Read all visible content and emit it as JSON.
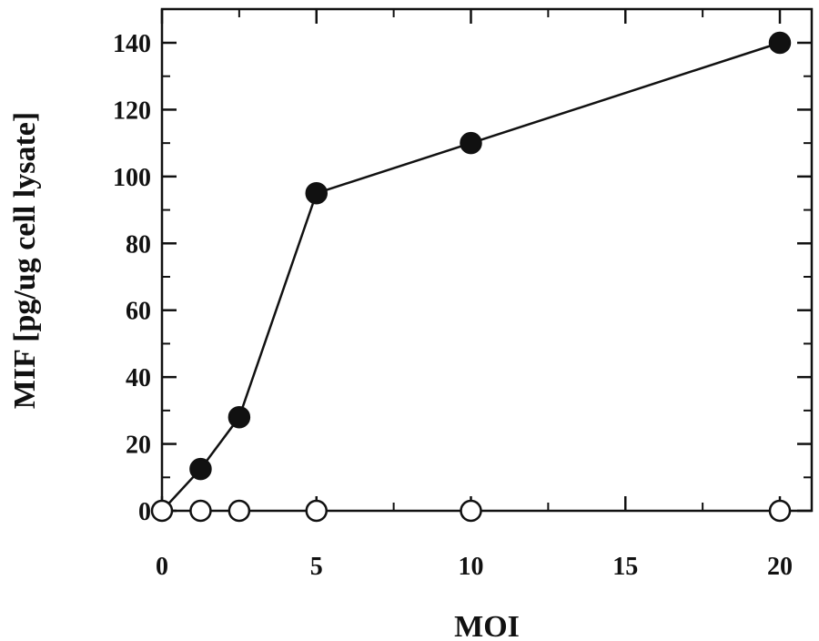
{
  "chart_data": {
    "type": "scatter",
    "title": "",
    "xlabel": "MOI",
    "ylabel": "MIF [pg/ug  cell lysate]",
    "xlim": [
      0,
      20
    ],
    "ylim": [
      0,
      140
    ],
    "x_ticks": [
      0,
      5,
      10,
      15,
      20
    ],
    "y_ticks": [
      0,
      20,
      40,
      60,
      80,
      100,
      120,
      140
    ],
    "grid": false,
    "series": [
      {
        "marker": "filled-circle",
        "line": true,
        "color": "#111111",
        "points": [
          {
            "x": 0,
            "y": 0
          },
          {
            "x": 1.25,
            "y": 12.5
          },
          {
            "x": 2.5,
            "y": 28
          },
          {
            "x": 5,
            "y": 95
          },
          {
            "x": 10,
            "y": 110
          },
          {
            "x": 20,
            "y": 140
          }
        ]
      },
      {
        "marker": "open-circle",
        "line": false,
        "color": "#111111",
        "points": [
          {
            "x": 0,
            "y": 0
          },
          {
            "x": 1.25,
            "y": 0
          },
          {
            "x": 2.5,
            "y": 0
          },
          {
            "x": 5,
            "y": 0
          },
          {
            "x": 10,
            "y": 0
          },
          {
            "x": 20,
            "y": 0
          }
        ]
      }
    ]
  }
}
